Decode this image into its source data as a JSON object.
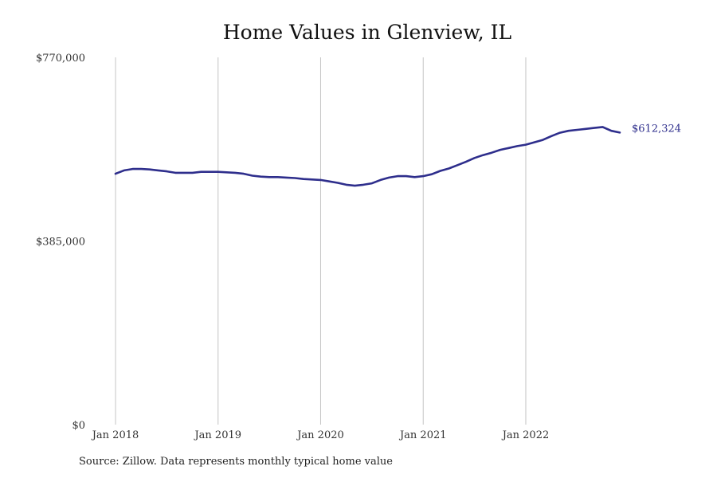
{
  "chart_data": {
    "type": "line",
    "title": "Home Values in Glenview, IL",
    "xlabel": "",
    "ylabel": "",
    "ylim": [
      0,
      770000
    ],
    "y_ticks": [
      0,
      385000,
      770000
    ],
    "y_tick_labels": [
      "$0",
      "$385,000",
      "$770,000"
    ],
    "x_ticks": [
      "2018-01",
      "2019-01",
      "2020-01",
      "2021-01",
      "2022-01"
    ],
    "x_tick_labels": [
      "Jan 2018",
      "Jan 2019",
      "Jan 2020",
      "Jan 2021",
      "Jan 2022"
    ],
    "xlim": [
      "2018-01",
      "2022-12"
    ],
    "grid": "vertical",
    "legend": "none",
    "line_color": "#2e2e8c",
    "grid_color": "#c4c4c4",
    "end_label": "$612,324",
    "series": [
      {
        "x": [
          "2018-01",
          "2018-02",
          "2018-03",
          "2018-04",
          "2018-05",
          "2018-06",
          "2018-07",
          "2018-08",
          "2018-09",
          "2018-10",
          "2018-11",
          "2018-12",
          "2019-01",
          "2019-02",
          "2019-03",
          "2019-04",
          "2019-05",
          "2019-06",
          "2019-07",
          "2019-08",
          "2019-09",
          "2019-10",
          "2019-11",
          "2019-12",
          "2020-01",
          "2020-02",
          "2020-03",
          "2020-04",
          "2020-05",
          "2020-06",
          "2020-07",
          "2020-08",
          "2020-09",
          "2020-10",
          "2020-11",
          "2020-12",
          "2021-01",
          "2021-02",
          "2021-03",
          "2021-04",
          "2021-05",
          "2021-06",
          "2021-07",
          "2021-08",
          "2021-09",
          "2021-10",
          "2021-11",
          "2021-12",
          "2022-01",
          "2022-02",
          "2022-03",
          "2022-04",
          "2022-05",
          "2022-06",
          "2022-07",
          "2022-08",
          "2022-09",
          "2022-10",
          "2022-11",
          "2022-12"
        ],
        "values": [
          526000,
          533000,
          536000,
          536000,
          535000,
          533000,
          531000,
          528000,
          528000,
          528000,
          530000,
          530000,
          530000,
          529000,
          528000,
          526000,
          522000,
          520000,
          519000,
          519000,
          518000,
          517000,
          515000,
          514000,
          513000,
          510000,
          507000,
          503000,
          501000,
          503000,
          506000,
          513000,
          518000,
          521000,
          521000,
          519000,
          521000,
          525000,
          532000,
          537000,
          544000,
          551000,
          559000,
          565000,
          570000,
          576000,
          580000,
          584000,
          587000,
          592000,
          597000,
          605000,
          612000,
          616000,
          618000,
          620000,
          622000,
          624000,
          616000,
          612324
        ]
      }
    ]
  },
  "source_note": "Source: Zillow. Data represents monthly typical home value"
}
